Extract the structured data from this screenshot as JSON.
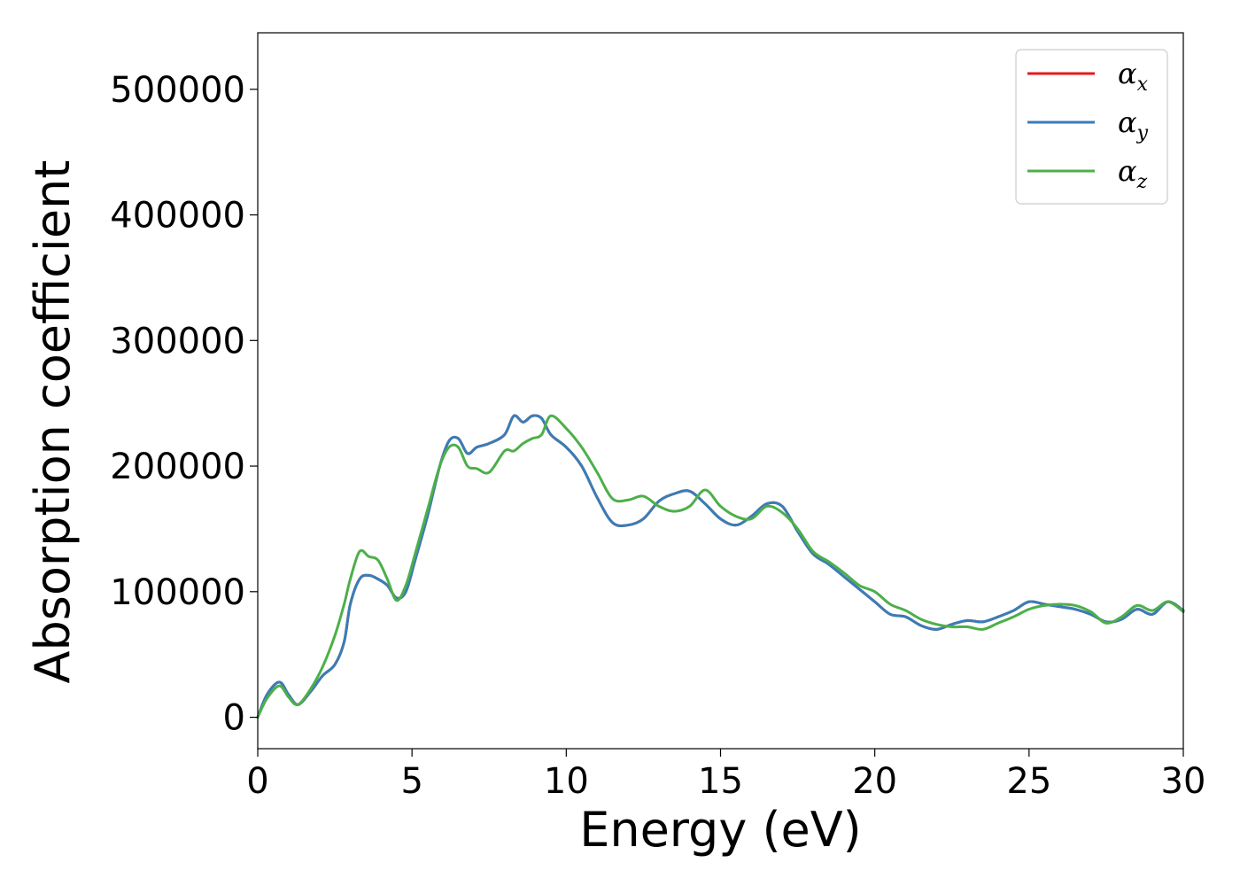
{
  "chart_data": {
    "type": "line",
    "title": "",
    "xlabel": "Energy (eV)",
    "ylabel": "Absorption coefficient",
    "xlim": [
      0,
      30
    ],
    "ylim": [
      -25000,
      545000
    ],
    "x_ticks": [
      0,
      5,
      10,
      15,
      20,
      25,
      30
    ],
    "y_ticks": [
      0,
      100000,
      200000,
      300000,
      400000,
      500000
    ],
    "x_tick_labels": [
      "0",
      "5",
      "10",
      "15",
      "20",
      "25",
      "30"
    ],
    "y_tick_labels": [
      "0",
      "100000",
      "200000",
      "300000",
      "400000",
      "500000"
    ],
    "grid": false,
    "legend_position": "top-right",
    "series": [
      {
        "name": "α",
        "subscript": "x",
        "color": "#e41a1c",
        "x": [
          0,
          0.3,
          0.7,
          1.0,
          1.3,
          1.7,
          2.1,
          2.5,
          2.8,
          3.0,
          3.3,
          3.6,
          3.9,
          4.2,
          4.5,
          4.8,
          5.1,
          5.5,
          5.9,
          6.2,
          6.5,
          6.8,
          7.1,
          7.5,
          8.0,
          8.3,
          8.6,
          8.9,
          9.2,
          9.5,
          10.0,
          10.5,
          11.0,
          11.5,
          12.0,
          12.5,
          13.0,
          13.5,
          14.0,
          14.5,
          15.0,
          15.5,
          16.0,
          16.5,
          17.0,
          17.5,
          18.0,
          18.5,
          19.0,
          19.5,
          20.0,
          20.5,
          21.0,
          21.5,
          22.0,
          22.5,
          23.0,
          23.5,
          24.0,
          24.5,
          25.0,
          25.5,
          26.0,
          26.5,
          27.0,
          27.5,
          28.0,
          28.5,
          29.0,
          29.5,
          30.0
        ],
        "y": [
          0,
          18000,
          28000,
          18000,
          10000,
          20000,
          33000,
          42000,
          60000,
          90000,
          110000,
          113000,
          110000,
          105000,
          95000,
          100000,
          125000,
          160000,
          200000,
          220000,
          222000,
          210000,
          215000,
          218000,
          225000,
          240000,
          235000,
          240000,
          238000,
          225000,
          215000,
          200000,
          175000,
          155000,
          153000,
          158000,
          172000,
          178000,
          180000,
          170000,
          158000,
          153000,
          160000,
          170000,
          168000,
          148000,
          130000,
          122000,
          112000,
          102000,
          92000,
          82000,
          80000,
          73000,
          70000,
          74000,
          77000,
          76000,
          80000,
          85000,
          92000,
          90000,
          88000,
          86000,
          82000,
          76000,
          78000,
          86000,
          82000,
          92000,
          85000
        ]
      },
      {
        "name": "α",
        "subscript": "y",
        "color": "#377eb8",
        "x": [
          0,
          0.3,
          0.7,
          1.0,
          1.3,
          1.7,
          2.1,
          2.5,
          2.8,
          3.0,
          3.3,
          3.6,
          3.9,
          4.2,
          4.5,
          4.8,
          5.1,
          5.5,
          5.9,
          6.2,
          6.5,
          6.8,
          7.1,
          7.5,
          8.0,
          8.3,
          8.6,
          8.9,
          9.2,
          9.5,
          10.0,
          10.5,
          11.0,
          11.5,
          12.0,
          12.5,
          13.0,
          13.5,
          14.0,
          14.5,
          15.0,
          15.5,
          16.0,
          16.5,
          17.0,
          17.5,
          18.0,
          18.5,
          19.0,
          19.5,
          20.0,
          20.5,
          21.0,
          21.5,
          22.0,
          22.5,
          23.0,
          23.5,
          24.0,
          24.5,
          25.0,
          25.5,
          26.0,
          26.5,
          27.0,
          27.5,
          28.0,
          28.5,
          29.0,
          29.5,
          30.0
        ],
        "y": [
          0,
          18000,
          28000,
          18000,
          10000,
          20000,
          33000,
          42000,
          60000,
          90000,
          110000,
          113000,
          110000,
          105000,
          95000,
          100000,
          125000,
          160000,
          200000,
          220000,
          222000,
          210000,
          215000,
          218000,
          225000,
          240000,
          235000,
          240000,
          238000,
          225000,
          215000,
          200000,
          175000,
          155000,
          153000,
          158000,
          172000,
          178000,
          180000,
          170000,
          158000,
          153000,
          160000,
          170000,
          168000,
          148000,
          130000,
          122000,
          112000,
          102000,
          92000,
          82000,
          80000,
          73000,
          70000,
          74000,
          77000,
          76000,
          80000,
          85000,
          92000,
          90000,
          88000,
          86000,
          82000,
          76000,
          78000,
          86000,
          82000,
          92000,
          85000
        ]
      },
      {
        "name": "α",
        "subscript": "z",
        "color": "#4daf4a",
        "x": [
          0,
          0.3,
          0.7,
          1.0,
          1.3,
          1.7,
          2.1,
          2.5,
          2.8,
          3.0,
          3.3,
          3.6,
          3.9,
          4.2,
          4.5,
          4.8,
          5.1,
          5.5,
          5.9,
          6.2,
          6.5,
          6.8,
          7.1,
          7.5,
          8.0,
          8.3,
          8.6,
          8.9,
          9.2,
          9.5,
          10.0,
          10.5,
          11.0,
          11.5,
          12.0,
          12.5,
          13.0,
          13.5,
          14.0,
          14.5,
          15.0,
          15.5,
          16.0,
          16.5,
          17.0,
          17.5,
          18.0,
          18.5,
          19.0,
          19.5,
          20.0,
          20.5,
          21.0,
          21.5,
          22.0,
          22.5,
          23.0,
          23.5,
          24.0,
          24.5,
          25.0,
          25.5,
          26.0,
          26.5,
          27.0,
          27.5,
          28.0,
          28.5,
          29.0,
          29.5,
          30.0
        ],
        "y": [
          0,
          15000,
          25000,
          16000,
          10000,
          22000,
          40000,
          65000,
          90000,
          110000,
          132000,
          128000,
          125000,
          110000,
          93000,
          105000,
          130000,
          165000,
          200000,
          215000,
          215000,
          200000,
          198000,
          195000,
          212000,
          212000,
          218000,
          222000,
          225000,
          240000,
          230000,
          215000,
          195000,
          174000,
          173000,
          176000,
          168000,
          164000,
          168000,
          181000,
          168000,
          160000,
          158000,
          168000,
          163000,
          150000,
          132000,
          124000,
          115000,
          105000,
          100000,
          90000,
          85000,
          78000,
          74000,
          72000,
          72000,
          70000,
          75000,
          80000,
          86000,
          89000,
          90000,
          89000,
          84000,
          75000,
          80000,
          89000,
          85000,
          92000,
          84000
        ]
      }
    ]
  }
}
